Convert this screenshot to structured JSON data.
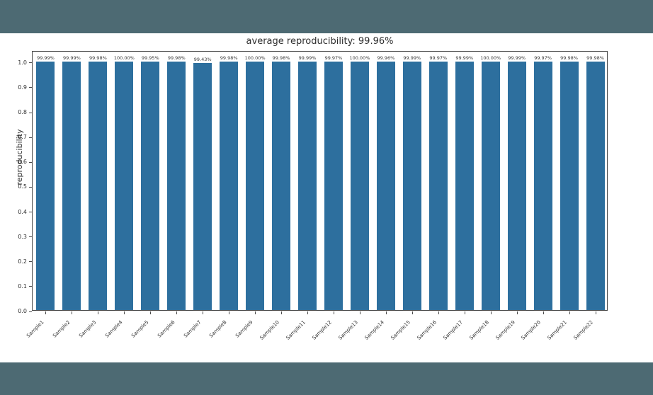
{
  "page": {
    "top_band_color": "#4d6a73",
    "bottom_band_color": "#4d6a73",
    "figure_background": "#ffffff"
  },
  "chart_data": {
    "type": "bar",
    "title": "average reproducibility: 99.96%",
    "xlabel": "",
    "ylabel": "reproducibility",
    "categories": [
      "Sample1",
      "Sample2",
      "Sample3",
      "Sample4",
      "Sample5",
      "Sample6",
      "Sample7",
      "Sample8",
      "Sample9",
      "Sample10",
      "Sample11",
      "Sample12",
      "Sample13",
      "Sample14",
      "Sample15",
      "Sample16",
      "Sample17",
      "Sample18",
      "Sample19",
      "Sample20",
      "Sample21",
      "Sample22"
    ],
    "values": [
      0.9999,
      0.9999,
      0.9998,
      1.0,
      0.9995,
      0.9998,
      0.9943,
      0.9998,
      1.0,
      0.9998,
      0.9999,
      0.9997,
      1.0,
      0.9996,
      0.9999,
      0.9997,
      0.9999,
      1.0,
      0.9999,
      0.9997,
      0.9998,
      0.9998
    ],
    "bar_labels": [
      "99.99%",
      "99.99%",
      "99.98%",
      "100.00%",
      "99.95%",
      "99.98%",
      "99.43%",
      "99.98%",
      "100.00%",
      "99.98%",
      "99.99%",
      "99.97%",
      "100.00%",
      "99.96%",
      "99.99%",
      "99.97%",
      "99.99%",
      "100.00%",
      "99.99%",
      "99.97%",
      "99.98%",
      "99.98%"
    ],
    "yticks": [
      0.0,
      0.1,
      0.2,
      0.3,
      0.4,
      0.5,
      0.6,
      0.7,
      0.8,
      0.9,
      1.0
    ],
    "ylim": [
      0,
      1.045
    ],
    "bar_color": "#2d6f9e",
    "grid": false,
    "legend": null
  }
}
